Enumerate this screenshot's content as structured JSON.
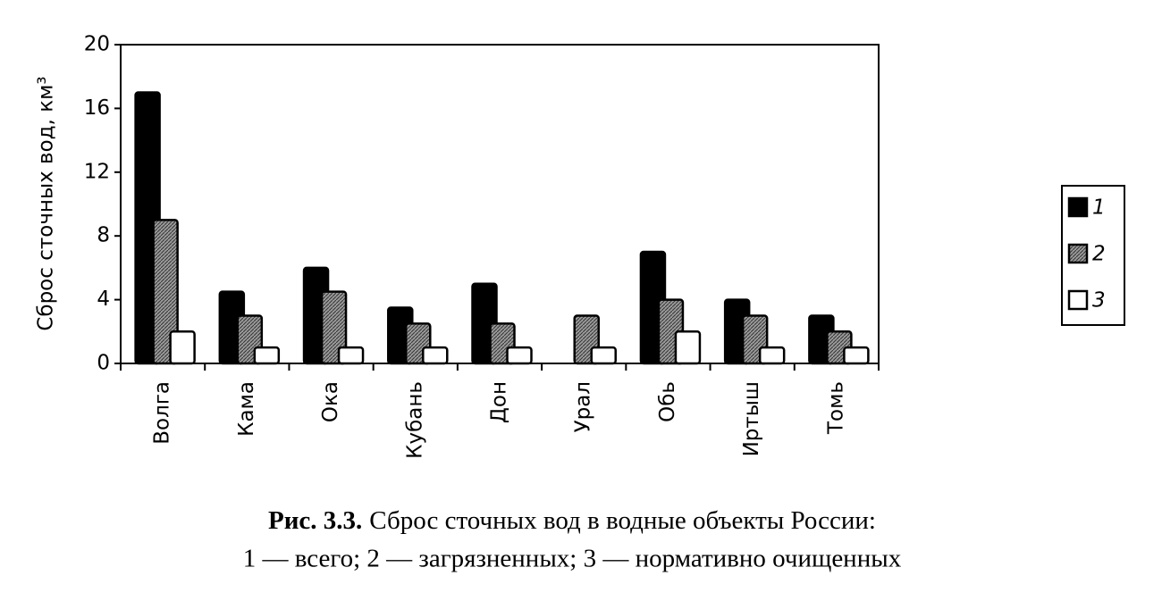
{
  "chart_data": {
    "type": "bar",
    "caption_prefix": "Рис. 3.3.",
    "title": "Сброс сточных вод в водные объекты России:",
    "subtitle": "1 — всего; 2 — загрязненных; 3 — нормативно очищенных",
    "y_label": "Сброс сточных вод, км³",
    "categories": [
      "Волга",
      "Кама",
      "Ока",
      "Кубань",
      "Дон",
      "Урал",
      "Обь",
      "Иртыш",
      "Томь"
    ],
    "series": [
      {
        "name": "1",
        "color": "#000000",
        "values": [
          17,
          4.5,
          6,
          3.5,
          5,
          0,
          7,
          4,
          3
        ]
      },
      {
        "name": "2",
        "color": "#8a8a8a",
        "hatch": true,
        "values": [
          9,
          3,
          4.5,
          2.5,
          2.5,
          3,
          4,
          3,
          2
        ]
      },
      {
        "name": "3",
        "color": "#ffffff",
        "values": [
          2,
          1,
          1,
          1,
          1,
          1,
          2,
          1,
          1
        ]
      }
    ],
    "ylim": [
      0,
      20
    ],
    "yticks": [
      0,
      4,
      8,
      12,
      16,
      20
    ],
    "legend": "right"
  }
}
